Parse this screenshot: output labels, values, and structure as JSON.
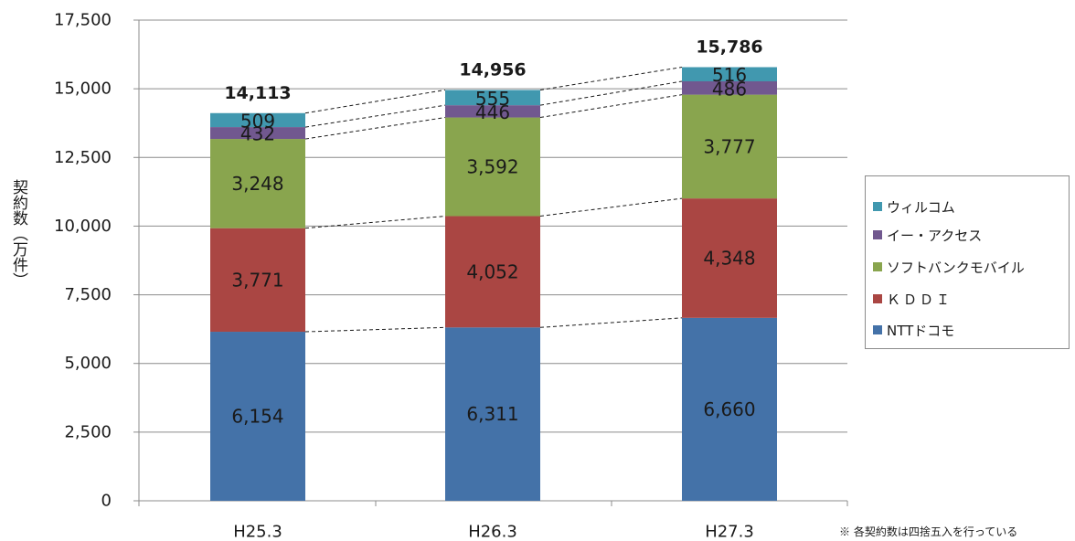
{
  "chart_data": {
    "type": "bar",
    "stacked": true,
    "categories": [
      "H25.3",
      "H26.3",
      "H27.3"
    ],
    "series": [
      {
        "name": "NTTドコモ",
        "color": "#4472A8",
        "values": [
          6154,
          6311,
          6660
        ],
        "labels": [
          "6,154",
          "6,311",
          "6,660"
        ]
      },
      {
        "name": "ＫＤＤＩ",
        "color": "#AA4643",
        "values": [
          3771,
          4052,
          4348
        ],
        "labels": [
          "3,771",
          "4,052",
          "4,348"
        ]
      },
      {
        "name": "ソフトバンクモバイル",
        "color": "#89A54E",
        "values": [
          3248,
          3592,
          3777
        ],
        "labels": [
          "3,248",
          "3,592",
          "3,777"
        ]
      },
      {
        "name": "イー・アクセス",
        "color": "#71588F",
        "values": [
          432,
          446,
          486
        ],
        "labels": [
          "432",
          "446",
          "486"
        ]
      },
      {
        "name": "ウィルコム",
        "color": "#4198AF",
        "values": [
          509,
          555,
          516
        ],
        "labels": [
          "509",
          "555",
          "516"
        ]
      }
    ],
    "totals": [
      14113,
      14956,
      15786
    ],
    "total_labels": [
      "14,113",
      "14,956",
      "15,786"
    ],
    "ylabel": "契約数（万件）",
    "ylim": [
      0,
      17500
    ],
    "yticks": [
      0,
      2500,
      5000,
      7500,
      10000,
      12500,
      15000,
      17500
    ],
    "ytick_labels": [
      "0",
      "2,500",
      "5,000",
      "7,500",
      "10,000",
      "12,500",
      "15,000",
      "17,500"
    ],
    "grid": true,
    "legend_position": "right",
    "connector_lines": "dashed",
    "footnote": "※ 各契約数は四捨五入を行っている"
  }
}
